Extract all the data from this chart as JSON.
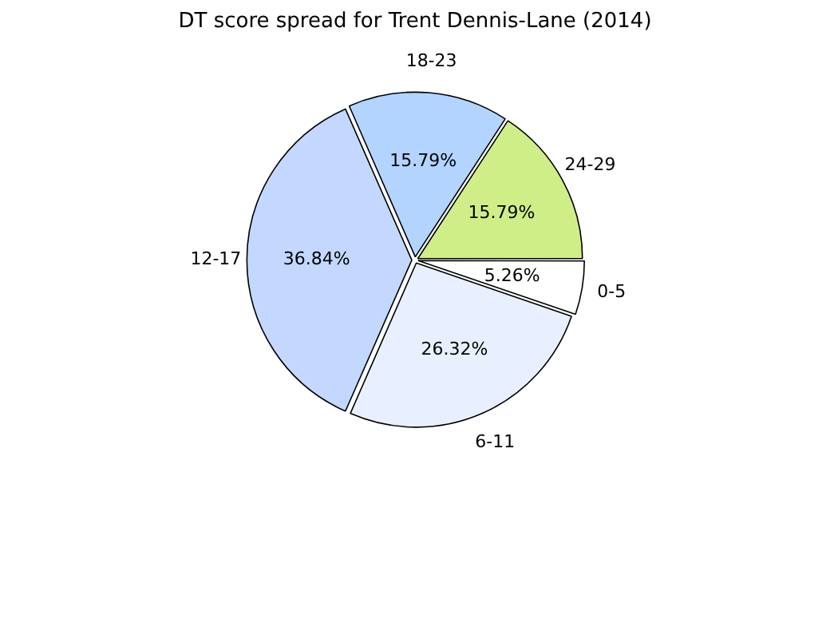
{
  "chart_data": {
    "type": "pie",
    "title": "DT score spread for Trent Dennis-Lane (2014)",
    "categories": [
      "0-5",
      "6-11",
      "12-17",
      "18-23",
      "24-29"
    ],
    "values": [
      5.26,
      26.32,
      36.84,
      15.79,
      15.79
    ],
    "value_labels": [
      "5.26%",
      "26.32%",
      "36.84%",
      "15.79%",
      "15.79%"
    ],
    "colors": [
      "#ffffff",
      "#e8f0ff",
      "#c4d8ff",
      "#b3d4ff",
      "#d0ee88"
    ],
    "legend": false
  }
}
